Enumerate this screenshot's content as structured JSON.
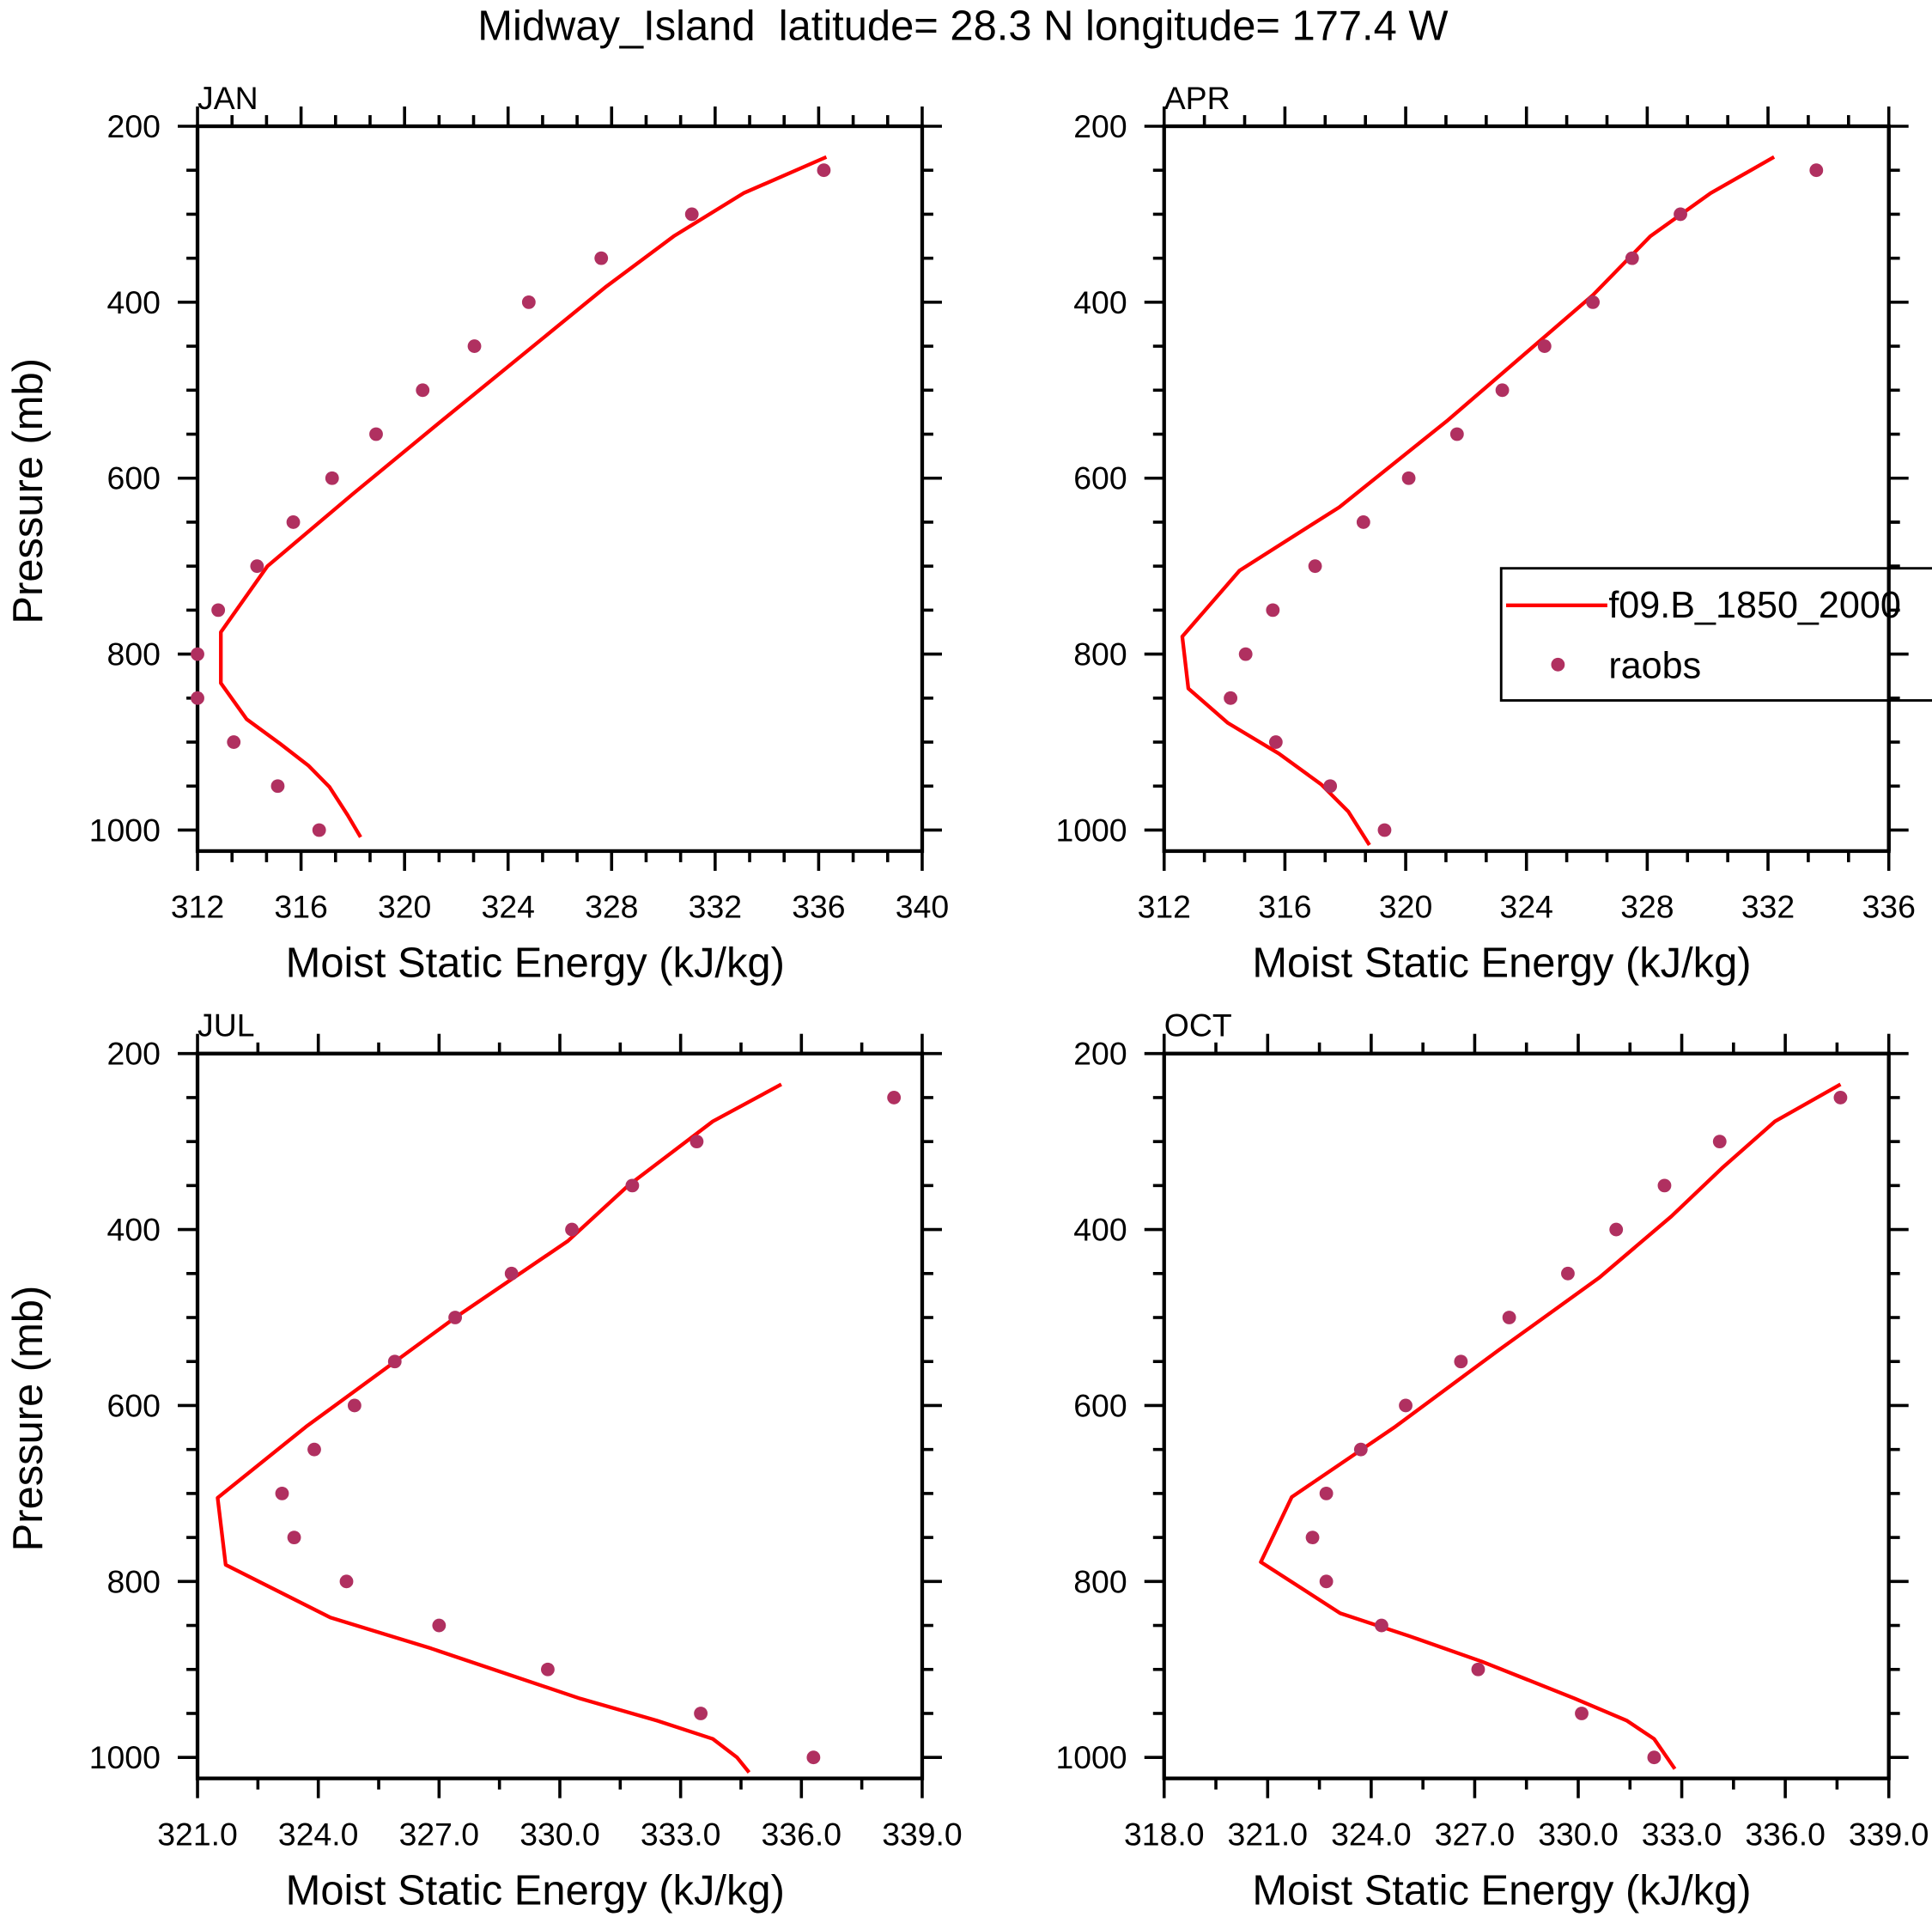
{
  "title": "Midway_Island  latitude= 28.3 N longitude= 177.4 W",
  "legend": {
    "model_label": "f09.B_1850_2000",
    "obs_label": "raobs",
    "placement": "right-middle of APR panel"
  },
  "colors": {
    "model": "#ff0000",
    "obs": "#b03060",
    "axes": "#000000"
  },
  "chart_data": [
    {
      "type": "line",
      "title": "JAN",
      "xlabel": "Moist Static Energy (kJ/kg)",
      "ylabel": "Pressure (mb)",
      "xlim": [
        312,
        340
      ],
      "ylim": [
        1024,
        200
      ],
      "xticks": [
        312,
        316,
        320,
        324,
        328,
        332,
        336,
        340
      ],
      "xtick_labels": [
        "312",
        "316",
        "320",
        "324",
        "328",
        "332",
        "336",
        "340"
      ],
      "xminor": 2,
      "yticks": [
        200,
        400,
        600,
        800,
        1000
      ],
      "ytick_labels": [
        "200",
        "400",
        "600",
        "800",
        "1000"
      ],
      "series": [
        {
          "name": "f09.B_1850_2000",
          "kind": "line",
          "x": [
            336.3,
            333.1,
            330.4,
            327.8,
            321.3,
            318.0,
            314.7,
            312.9,
            312.9,
            313.9,
            315.2,
            316.3,
            317.1,
            317.8,
            318.3
          ],
          "y": [
            235,
            276,
            325,
            382,
            538,
            618,
            700,
            775,
            833,
            874,
            902,
            927,
            951,
            983,
            1008
          ]
        },
        {
          "name": "raobs",
          "kind": "scatter",
          "x": [
            336.2,
            331.1,
            327.6,
            324.8,
            322.7,
            320.7,
            318.9,
            317.2,
            315.7,
            314.3,
            312.8,
            312.0,
            312.0,
            313.4,
            315.1,
            316.7
          ],
          "y": [
            250,
            300,
            350,
            400,
            450,
            500,
            550,
            600,
            650,
            700,
            750,
            800,
            850,
            900,
            950,
            1000
          ]
        }
      ]
    },
    {
      "type": "line",
      "title": "APR",
      "xlabel": "Moist Static Energy (kJ/kg)",
      "ylabel": "",
      "xlim": [
        312,
        336
      ],
      "ylim": [
        1024,
        200
      ],
      "xticks": [
        312,
        316,
        320,
        324,
        328,
        332,
        336
      ],
      "xtick_labels": [
        "312",
        "316",
        "320",
        "324",
        "328",
        "332",
        "336"
      ],
      "xminor": 2,
      "yticks": [
        200,
        400,
        600,
        800,
        1000
      ],
      "ytick_labels": [
        "200",
        "400",
        "600",
        "800",
        "1000"
      ],
      "series": [
        {
          "name": "f09.B_1850_2000",
          "kind": "line",
          "x": [
            332.2,
            330.1,
            328.1,
            326.2,
            321.4,
            317.8,
            314.5,
            312.6,
            312.8,
            314.1,
            315.8,
            317.2,
            318.1,
            318.8
          ],
          "y": [
            235,
            276,
            325,
            392,
            534,
            633,
            705,
            780,
            839,
            878,
            913,
            948,
            979,
            1017
          ]
        },
        {
          "name": "raobs",
          "kind": "scatter",
          "x": [
            333.6,
            329.1,
            327.5,
            326.2,
            324.6,
            323.2,
            321.7,
            320.1,
            318.6,
            317.0,
            315.6,
            314.7,
            314.2,
            315.7,
            317.5,
            319.3
          ],
          "y": [
            250,
            300,
            350,
            400,
            450,
            500,
            550,
            600,
            650,
            700,
            750,
            800,
            850,
            900,
            950,
            1000
          ]
        }
      ]
    },
    {
      "type": "line",
      "title": "JUL",
      "xlabel": "Moist Static Energy (kJ/kg)",
      "ylabel": "Pressure (mb)",
      "xlim": [
        321,
        339
      ],
      "ylim": [
        1024,
        200
      ],
      "xticks": [
        321,
        324,
        327,
        330,
        333,
        336,
        339
      ],
      "xtick_labels": [
        "321.0",
        "324.0",
        "327.0",
        "330.0",
        "333.0",
        "336.0",
        "339.0"
      ],
      "xminor": 1,
      "yticks": [
        200,
        400,
        600,
        800,
        1000
      ],
      "ytick_labels": [
        "200",
        "400",
        "600",
        "800",
        "1000"
      ],
      "series": [
        {
          "name": "f09.B_1850_2000",
          "kind": "line",
          "x": [
            335.5,
            333.8,
            331.7,
            330.2,
            327.4,
            323.7,
            321.5,
            321.7,
            324.3,
            326.8,
            330.5,
            332.4,
            333.8,
            334.4,
            334.7
          ],
          "y": [
            235,
            277,
            350,
            413,
            500,
            624,
            705,
            781,
            841,
            876,
            933,
            958,
            979,
            1000,
            1017
          ]
        },
        {
          "name": "raobs",
          "kind": "scatter",
          "x": [
            338.3,
            333.4,
            331.8,
            330.3,
            328.8,
            327.4,
            325.9,
            324.9,
            323.9,
            323.1,
            323.4,
            324.7,
            327.0,
            329.7,
            333.5,
            336.3
          ],
          "y": [
            250,
            300,
            350,
            400,
            450,
            500,
            550,
            600,
            650,
            700,
            750,
            800,
            850,
            900,
            950,
            1000
          ]
        }
      ]
    },
    {
      "type": "line",
      "title": "OCT",
      "xlabel": "Moist Static Energy (kJ/kg)",
      "ylabel": "",
      "xlim": [
        318,
        339
      ],
      "ylim": [
        1024,
        200
      ],
      "xticks": [
        318,
        321,
        324,
        327,
        330,
        333,
        336,
        339
      ],
      "xtick_labels": [
        "318.0",
        "321.0",
        "324.0",
        "327.0",
        "330.0",
        "333.0",
        "336.0",
        "339.0"
      ],
      "xminor": 1,
      "yticks": [
        200,
        400,
        600,
        800,
        1000
      ],
      "ytick_labels": [
        "200",
        "400",
        "600",
        "800",
        "1000"
      ],
      "series": [
        {
          "name": "f09.B_1850_2000",
          "kind": "line",
          "x": [
            337.6,
            335.7,
            334.2,
            332.7,
            330.6,
            327.7,
            324.7,
            321.7,
            320.8,
            323.1,
            325.1,
            327.2,
            329.9,
            331.4,
            332.2,
            332.8
          ],
          "y": [
            235,
            277,
            329,
            385,
            455,
            537,
            624,
            704,
            778,
            836,
            862,
            891,
            933,
            958,
            979,
            1013
          ]
        },
        {
          "name": "raobs",
          "kind": "scatter",
          "x": [
            337.6,
            334.1,
            332.5,
            331.1,
            329.7,
            328.0,
            326.6,
            325.0,
            323.7,
            322.7,
            322.3,
            322.7,
            324.3,
            327.1,
            330.1,
            332.2
          ],
          "y": [
            250,
            300,
            350,
            400,
            450,
            500,
            550,
            600,
            650,
            700,
            750,
            800,
            850,
            900,
            950,
            1000
          ]
        }
      ]
    }
  ]
}
